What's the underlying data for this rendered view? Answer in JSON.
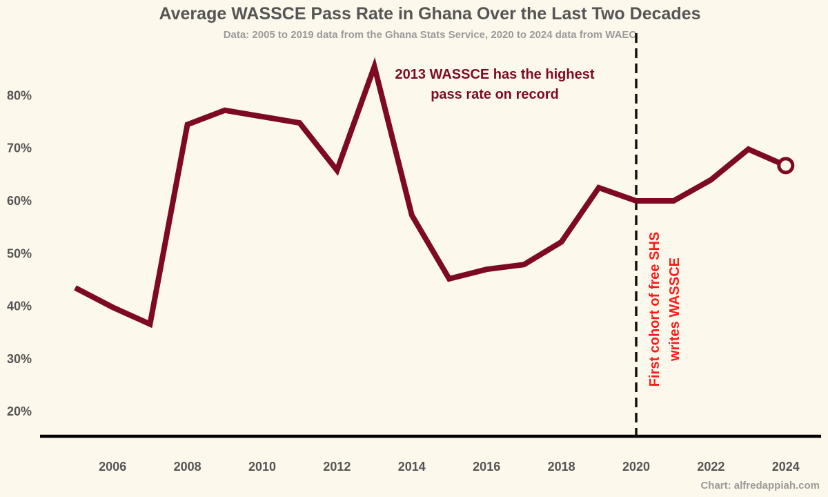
{
  "chart_data": {
    "type": "line",
    "title": "Average WASSCE Pass Rate in Ghana Over the Last Two Decades",
    "subtitle": "Data: 2005 to 2019 data from the Ghana Stats Service, 2020 to 2024 data from WAEC",
    "credit": "Chart: alfredappiah.com",
    "xlabel": "",
    "ylabel": "",
    "xlim": [
      2004,
      2025
    ],
    "ylim": [
      15,
      90
    ],
    "x_ticks": [
      2006,
      2008,
      2010,
      2012,
      2014,
      2016,
      2018,
      2020,
      2022,
      2024
    ],
    "y_ticks": [
      20,
      30,
      40,
      50,
      60,
      70,
      80
    ],
    "y_tick_suffix": "%",
    "grid": false,
    "line_color": "#7d0a22",
    "series": [
      {
        "x": [
          2005,
          2006,
          2007,
          2008,
          2009,
          2010,
          2011,
          2012,
          2013,
          2014,
          2015,
          2016,
          2017,
          2018,
          2019,
          2020,
          2021,
          2022,
          2023,
          2024
        ],
        "values": [
          43.5,
          39.8,
          36.6,
          74.5,
          77.2,
          76.0,
          74.8,
          65.8,
          85.5,
          57.3,
          45.2,
          47.0,
          47.9,
          52.2,
          62.5,
          60.0,
          60.0,
          64.0,
          69.8,
          66.7
        ]
      }
    ],
    "annotations": [
      {
        "text_lines": [
          "2013 WASSCE has the highest",
          "pass rate on record"
        ],
        "color": "#7d0a22"
      },
      {
        "text_lines": [
          "First cohort of free SHS",
          "writes WASSCE"
        ],
        "color": "#ff1a1a",
        "vline_x": 2020
      }
    ]
  }
}
